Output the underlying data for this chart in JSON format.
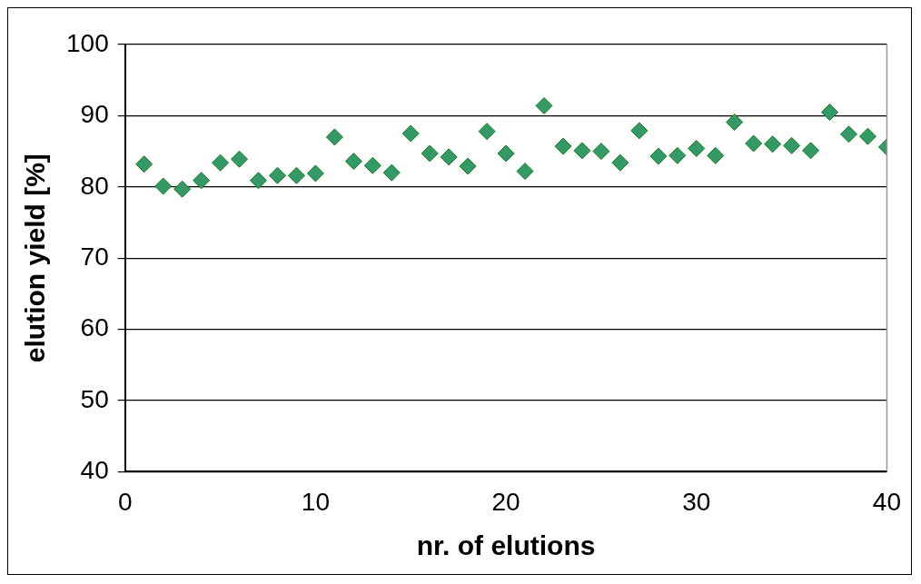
{
  "chart_data": {
    "type": "scatter",
    "xlabel": "nr. of elutions",
    "ylabel": "elution yield [%]",
    "x": [
      1,
      2,
      3,
      4,
      5,
      6,
      7,
      8,
      9,
      10,
      11,
      12,
      13,
      14,
      15,
      16,
      17,
      18,
      19,
      20,
      21,
      22,
      23,
      24,
      25,
      26,
      27,
      28,
      29,
      30,
      31,
      32,
      33,
      34,
      35,
      36,
      37,
      38,
      39,
      40
    ],
    "series": [
      {
        "color": "#339966",
        "values": [
          83.2,
          80.1,
          79.7,
          80.9,
          83.4,
          83.9,
          80.9,
          81.6,
          81.6,
          81.9,
          87.0,
          83.6,
          83.0,
          82.0,
          87.5,
          84.7,
          84.2,
          82.9,
          87.8,
          84.7,
          82.2,
          91.4,
          85.7,
          85.1,
          85.0,
          83.4,
          87.9,
          84.3,
          84.4,
          85.4,
          84.4,
          89.1,
          86.1,
          86.0,
          85.8,
          85.1,
          90.5,
          87.4,
          87.1,
          85.6
        ]
      }
    ],
    "xlim": [
      0,
      40
    ],
    "xticks": [
      0,
      10,
      20,
      30,
      40
    ],
    "ylim": [
      40,
      100
    ],
    "yticks": [
      40,
      50,
      60,
      70,
      80,
      90,
      100
    ],
    "grid": "y",
    "legend": false,
    "marker": "diamond"
  }
}
